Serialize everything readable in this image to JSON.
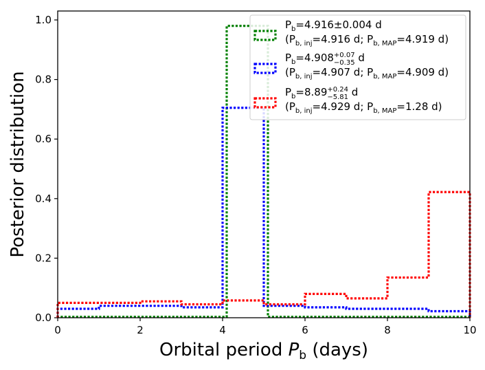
{
  "chart_data": {
    "type": "step-histogram",
    "xlabel_prefix": "Orbital period ",
    "xlabel_var": "P",
    "xlabel_var_sub": "b",
    "xlabel_suffix": " (days)",
    "ylabel": "Posterior distribution",
    "xlim": [
      0,
      10
    ],
    "ylim": [
      0,
      1.03
    ],
    "xticks": [
      0,
      2,
      4,
      6,
      8,
      10
    ],
    "xtick_labels": [
      "0",
      "2",
      "4",
      "6",
      "8",
      "10"
    ],
    "yticks": [
      0.0,
      0.2,
      0.4,
      0.6,
      0.8,
      1.0
    ],
    "ytick_labels": [
      "0.0",
      "0.2",
      "0.4",
      "0.6",
      "0.8",
      "1.0"
    ],
    "legend_position": "top-right",
    "series": [
      {
        "name": "green",
        "color": "#008000",
        "bin_edges": [
          0,
          4.1,
          5.1,
          10
        ],
        "values": [
          0.003,
          0.98,
          0.003
        ],
        "legend_line1": {
          "main": "P",
          "sub": "b",
          "rest": "=4.916±0.004 d",
          "sup": "",
          "low": "",
          "tail": ""
        },
        "legend_line2": {
          "open": "(P",
          "sub1": "b, inj",
          "mid": "=4.916 d; P",
          "sub2": "b, MAP",
          "close": "=4.919 d)"
        }
      },
      {
        "name": "blue",
        "color": "#0000ff",
        "bin_edges": [
          0,
          1,
          2,
          3,
          4,
          5,
          6,
          7,
          8,
          9,
          10
        ],
        "values": [
          0.03,
          0.04,
          0.04,
          0.035,
          0.705,
          0.04,
          0.035,
          0.03,
          0.03,
          0.022
        ],
        "legend_line1": {
          "main": "P",
          "sub": "b",
          "rest": "=4.908",
          "sup": "+0.07",
          "low": "−0.35",
          "tail": " d"
        },
        "legend_line2": {
          "open": "(P",
          "sub1": "b, inj",
          "mid": "=4.907 d; P",
          "sub2": "b, MAP",
          "close": "=4.909 d)"
        }
      },
      {
        "name": "red",
        "color": "#ff0000",
        "bin_edges": [
          0,
          1,
          2,
          3,
          4,
          5,
          6,
          7,
          8,
          9,
          10
        ],
        "values": [
          0.05,
          0.05,
          0.055,
          0.045,
          0.058,
          0.045,
          0.08,
          0.065,
          0.135,
          0.422
        ],
        "legend_line1": {
          "main": "P",
          "sub": "b",
          "rest": "=8.89",
          "sup": "+0.24",
          "low": "−5.81",
          "tail": " d"
        },
        "legend_line2": {
          "open": "(P",
          "sub1": "b, inj",
          "mid": "=4.929 d; P",
          "sub2": "b, MAP",
          "close": "=1.28 d)"
        }
      }
    ]
  }
}
